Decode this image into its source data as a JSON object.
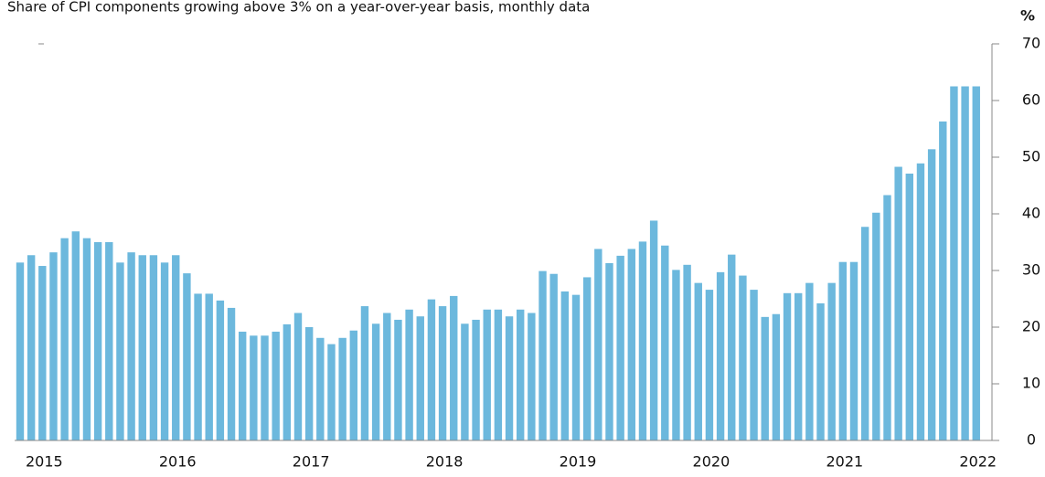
{
  "chart_data": {
    "type": "bar",
    "subtitle": "Share of CPI components growing above 3% on a year-over-year basis, monthly data",
    "y_unit": "%",
    "color": "#6cb8dd",
    "categories": [
      null,
      null,
      "2015",
      null,
      null,
      null,
      null,
      null,
      null,
      null,
      null,
      null,
      null,
      null,
      "2016",
      null,
      null,
      null,
      null,
      null,
      null,
      null,
      null,
      null,
      null,
      null,
      "2017",
      null,
      null,
      null,
      null,
      null,
      null,
      null,
      null,
      null,
      null,
      null,
      "2018",
      null,
      null,
      null,
      null,
      null,
      null,
      null,
      null,
      null,
      null,
      null,
      "2019",
      null,
      null,
      null,
      null,
      null,
      null,
      null,
      null,
      null,
      null,
      null,
      "2020",
      null,
      null,
      null,
      null,
      null,
      null,
      null,
      null,
      null,
      null,
      null,
      "2021",
      null,
      null,
      null,
      null,
      null,
      null,
      null,
      null,
      null,
      null,
      null,
      "2022"
    ],
    "values": [
      31.4,
      32.7,
      30.8,
      33.2,
      35.7,
      36.9,
      35.7,
      35,
      35,
      31.4,
      33.2,
      32.7,
      32.7,
      31.4,
      32.7,
      29.5,
      25.9,
      25.9,
      24.7,
      23.4,
      19.2,
      18.5,
      18.5,
      19.2,
      20.5,
      22.5,
      20,
      18.1,
      17,
      18.1,
      19.4,
      23.7,
      20.6,
      22.5,
      21.3,
      23.1,
      21.9,
      24.9,
      23.7,
      25.5,
      20.6,
      21.3,
      23.1,
      23.1,
      21.9,
      23.1,
      22.5,
      29.9,
      29.4,
      26.3,
      25.7,
      28.8,
      33.8,
      31.3,
      32.6,
      33.8,
      35.1,
      38.8,
      34.4,
      30.1,
      31,
      27.8,
      26.6,
      29.7,
      32.8,
      29.1,
      26.6,
      21.8,
      22.3,
      26,
      26,
      27.8,
      24.2,
      27.8,
      31.5,
      31.5,
      37.7,
      40.2,
      43.3,
      48.3,
      47.1,
      48.9,
      51.4,
      56.3,
      62.5,
      62.5,
      62.5
    ],
    "ylim": [
      0,
      70
    ],
    "yticks": [
      0,
      10,
      20,
      30,
      40,
      50,
      60,
      70
    ]
  }
}
